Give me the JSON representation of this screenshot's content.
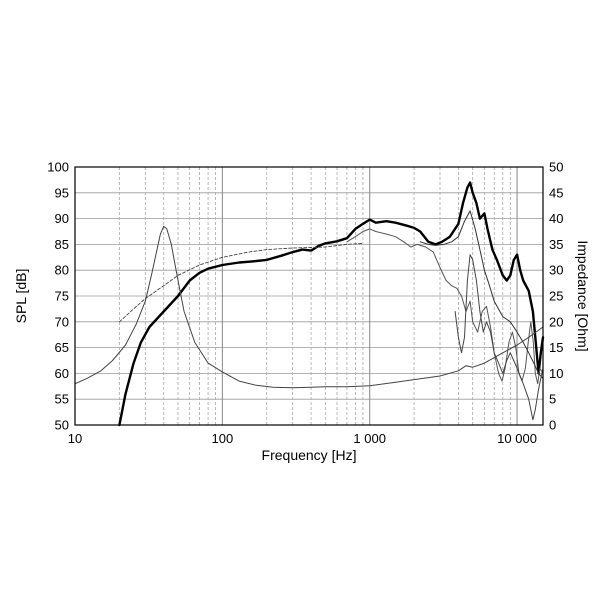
{
  "chart_data": {
    "type": "line",
    "title": "",
    "xlabel": "Frequency [Hz]",
    "ylabel_left": "SPL [dB]",
    "ylabel_right": "Impedance [Ohm]",
    "x_scale": "log",
    "xlim": [
      10,
      15000
    ],
    "ylim_left": [
      50,
      100
    ],
    "ylim_right": [
      0,
      50
    ],
    "grid": true,
    "x_ticks": [
      {
        "value": 10,
        "label": "10"
      },
      {
        "value": 100,
        "label": "100"
      },
      {
        "value": 1000,
        "label": "1 000"
      },
      {
        "value": 10000,
        "label": "10 000"
      }
    ],
    "y_ticks_left": [
      "50",
      "55",
      "60",
      "65",
      "70",
      "75",
      "80",
      "85",
      "90",
      "95",
      "100"
    ],
    "y_ticks_right": [
      "0",
      "5",
      "10",
      "15",
      "20",
      "25",
      "30",
      "35",
      "40",
      "45",
      "50"
    ],
    "series": [
      {
        "axis": "left",
        "style": "bold",
        "points": [
          [
            20,
            50
          ],
          [
            22,
            56
          ],
          [
            25,
            62
          ],
          [
            28,
            66
          ],
          [
            32,
            69
          ],
          [
            40,
            72
          ],
          [
            50,
            75
          ],
          [
            60,
            78
          ],
          [
            70,
            79.5
          ],
          [
            80,
            80.3
          ],
          [
            100,
            81
          ],
          [
            130,
            81.5
          ],
          [
            160,
            81.7
          ],
          [
            200,
            82
          ],
          [
            250,
            82.8
          ],
          [
            300,
            83.5
          ],
          [
            350,
            84
          ],
          [
            400,
            83.8
          ],
          [
            450,
            84.7
          ],
          [
            500,
            85.2
          ],
          [
            600,
            85.6
          ],
          [
            700,
            86.2
          ],
          [
            800,
            88
          ],
          [
            900,
            89
          ],
          [
            1000,
            89.8
          ],
          [
            1100,
            89.2
          ],
          [
            1300,
            89.5
          ],
          [
            1500,
            89.2
          ],
          [
            1800,
            88.6
          ],
          [
            2000,
            88.2
          ],
          [
            2200,
            87.5
          ],
          [
            2500,
            85.5
          ],
          [
            2800,
            85
          ],
          [
            3100,
            85.5
          ],
          [
            3500,
            86.5
          ],
          [
            4000,
            89
          ],
          [
            4300,
            93
          ],
          [
            4600,
            96
          ],
          [
            4800,
            97
          ],
          [
            5000,
            95
          ],
          [
            5300,
            93
          ],
          [
            5600,
            90
          ],
          [
            6000,
            91
          ],
          [
            6300,
            88
          ],
          [
            6800,
            84
          ],
          [
            7300,
            82
          ],
          [
            8000,
            79
          ],
          [
            8500,
            78
          ],
          [
            9000,
            79
          ],
          [
            9500,
            82
          ],
          [
            10000,
            83
          ],
          [
            10500,
            80
          ],
          [
            11000,
            78
          ],
          [
            12000,
            76
          ],
          [
            12800,
            72
          ],
          [
            13300,
            67
          ],
          [
            14000,
            60
          ],
          [
            14500,
            64
          ],
          [
            15000,
            67
          ]
        ]
      },
      {
        "axis": "left",
        "style": "thin",
        "points": [
          [
            700,
            85.5
          ],
          [
            800,
            86.5
          ],
          [
            900,
            87.5
          ],
          [
            1000,
            88
          ],
          [
            1100,
            87.5
          ],
          [
            1300,
            87
          ],
          [
            1500,
            86.5
          ],
          [
            1700,
            85.5
          ],
          [
            1900,
            84.5
          ],
          [
            2100,
            85
          ],
          [
            2400,
            84.5
          ],
          [
            2700,
            83.5
          ],
          [
            3000,
            80.5
          ],
          [
            3300,
            78
          ],
          [
            3600,
            77
          ],
          [
            3900,
            76.5
          ],
          [
            4200,
            75
          ],
          [
            4500,
            72
          ],
          [
            4800,
            74
          ],
          [
            5000,
            70
          ],
          [
            5400,
            68
          ],
          [
            5800,
            72
          ],
          [
            6200,
            73
          ],
          [
            6600,
            69
          ],
          [
            7000,
            64
          ],
          [
            7500,
            60
          ],
          [
            7900,
            58.5
          ],
          [
            8300,
            61
          ],
          [
            8800,
            66
          ],
          [
            9300,
            68
          ],
          [
            9800,
            65
          ],
          [
            10300,
            60
          ],
          [
            10800,
            58.5
          ],
          [
            11400,
            61
          ],
          [
            11900,
            66
          ],
          [
            12400,
            70
          ],
          [
            12900,
            66
          ],
          [
            13300,
            60
          ],
          [
            13800,
            58
          ],
          [
            14300,
            61
          ],
          [
            15000,
            60
          ]
        ]
      },
      {
        "axis": "left",
        "style": "thin-dark",
        "points": [
          [
            2200,
            85.5
          ],
          [
            2500,
            85
          ],
          [
            2800,
            84.8
          ],
          [
            3200,
            85
          ],
          [
            3600,
            85.5
          ],
          [
            4000,
            86.5
          ],
          [
            4400,
            89.5
          ],
          [
            4800,
            91.5
          ],
          [
            5200,
            88
          ],
          [
            5600,
            84
          ],
          [
            6000,
            80
          ],
          [
            6500,
            77
          ],
          [
            7000,
            74
          ],
          [
            8000,
            71
          ],
          [
            9000,
            70
          ],
          [
            10000,
            68
          ],
          [
            11000,
            66
          ],
          [
            12000,
            64
          ],
          [
            13000,
            62
          ],
          [
            14000,
            60
          ],
          [
            15000,
            59
          ]
        ]
      },
      {
        "axis": "left",
        "style": "dashed",
        "points": [
          [
            20,
            70
          ],
          [
            25,
            72.5
          ],
          [
            30,
            74.5
          ],
          [
            40,
            77
          ],
          [
            50,
            79
          ],
          [
            70,
            81
          ],
          [
            100,
            82.5
          ],
          [
            150,
            83.5
          ],
          [
            200,
            84
          ],
          [
            300,
            84.3
          ],
          [
            400,
            84.4
          ],
          [
            500,
            84.5
          ],
          [
            700,
            85
          ],
          [
            900,
            85.2
          ]
        ]
      },
      {
        "axis": "right",
        "style": "impedance",
        "points": [
          [
            10,
            8
          ],
          [
            12,
            9
          ],
          [
            15,
            10.5
          ],
          [
            18,
            12.5
          ],
          [
            22,
            15.5
          ],
          [
            26,
            19.5
          ],
          [
            30,
            24
          ],
          [
            33,
            29
          ],
          [
            36,
            34
          ],
          [
            38,
            37
          ],
          [
            40,
            38.5
          ],
          [
            42,
            38
          ],
          [
            45,
            35
          ],
          [
            50,
            28
          ],
          [
            55,
            22
          ],
          [
            65,
            16
          ],
          [
            80,
            12
          ],
          [
            100,
            10.3
          ],
          [
            130,
            8.5
          ],
          [
            170,
            7.7
          ],
          [
            220,
            7.3
          ],
          [
            300,
            7.2
          ],
          [
            400,
            7.3
          ],
          [
            500,
            7.4
          ],
          [
            700,
            7.4
          ],
          [
            1000,
            7.6
          ],
          [
            1500,
            8.3
          ],
          [
            2000,
            8.8
          ],
          [
            3000,
            9.5
          ],
          [
            4000,
            10.5
          ],
          [
            4500,
            11.5
          ],
          [
            5000,
            11.2
          ],
          [
            6000,
            12
          ],
          [
            8000,
            14
          ],
          [
            10000,
            15.5
          ],
          [
            12000,
            17
          ],
          [
            15000,
            19
          ]
        ]
      },
      {
        "axis": "right",
        "style": "impedance",
        "points": [
          [
            3800,
            22
          ],
          [
            4000,
            17
          ],
          [
            4200,
            14
          ],
          [
            4400,
            17
          ],
          [
            4600,
            28
          ],
          [
            4800,
            33
          ],
          [
            5000,
            32
          ],
          [
            5300,
            28
          ],
          [
            5600,
            22
          ],
          [
            5900,
            18
          ],
          [
            6200,
            20
          ],
          [
            6600,
            18
          ],
          [
            7000,
            14
          ],
          [
            7500,
            12
          ],
          [
            8000,
            10
          ],
          [
            8500,
            12.5
          ],
          [
            9000,
            14
          ],
          [
            10000,
            11
          ],
          [
            11000,
            8
          ],
          [
            12000,
            5
          ],
          [
            12800,
            1
          ],
          [
            13300,
            3
          ],
          [
            14000,
            7
          ],
          [
            15000,
            11
          ]
        ]
      }
    ]
  }
}
